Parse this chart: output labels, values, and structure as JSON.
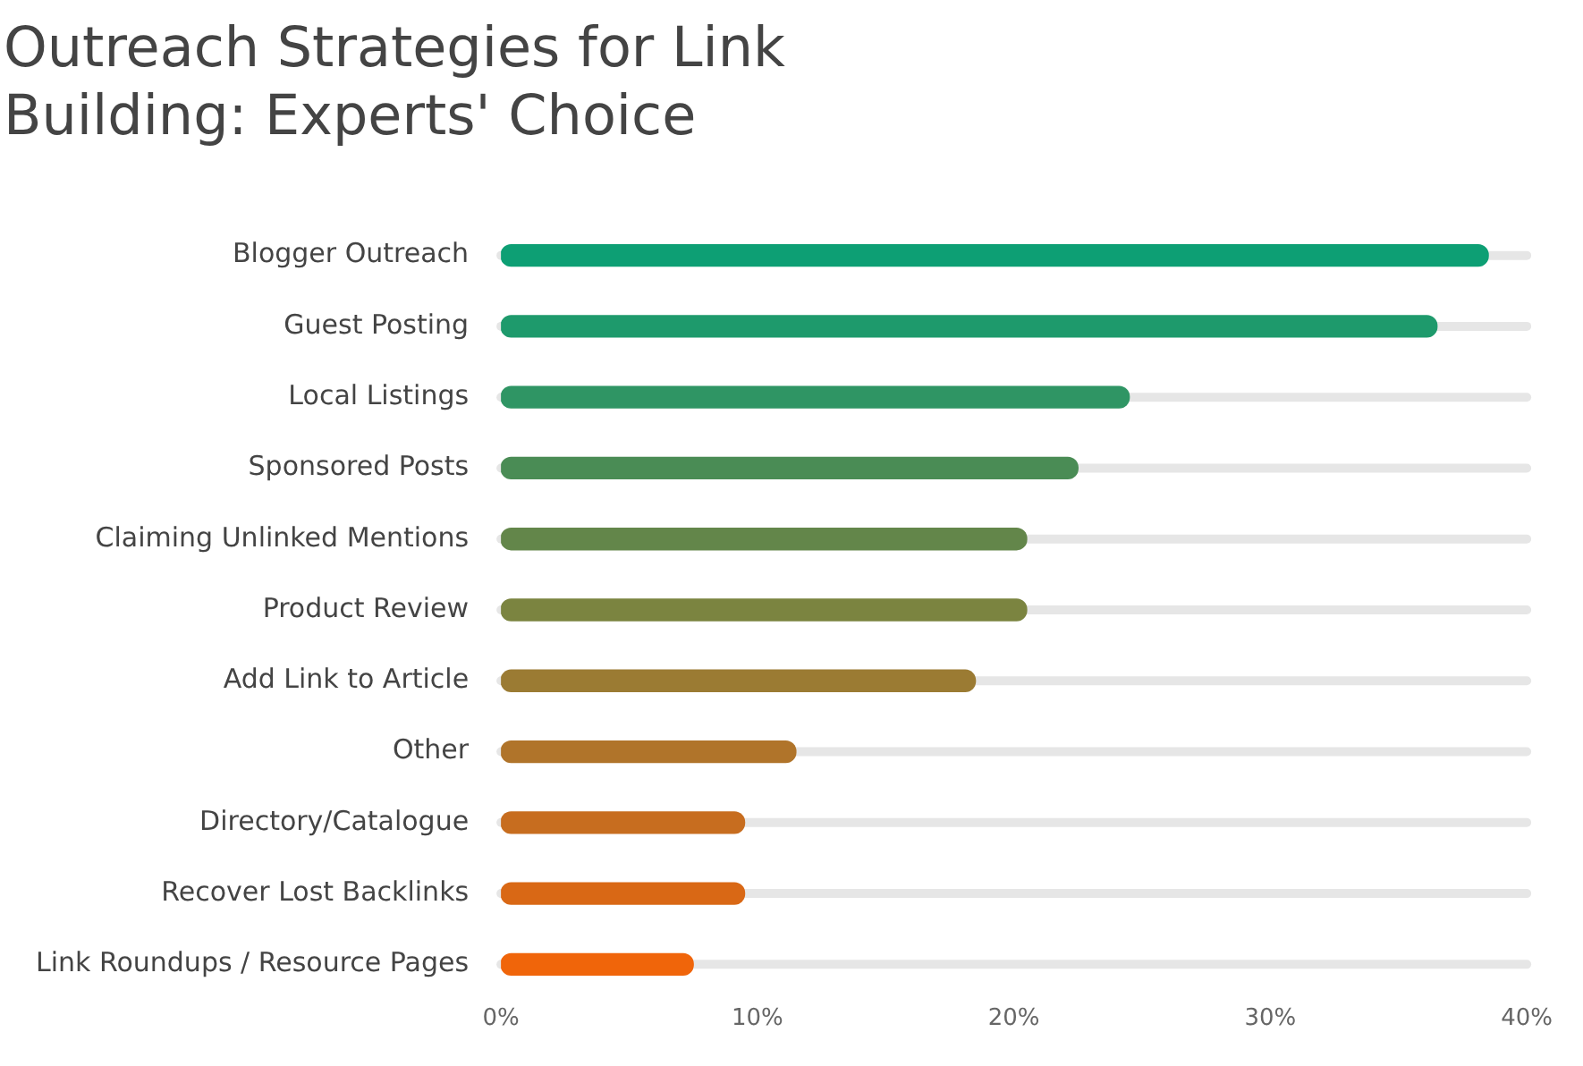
{
  "chart_data": {
    "type": "bar",
    "orientation": "horizontal",
    "title": "Outreach Strategies for Link Building: Experts' Choice",
    "categories": [
      "Blogger Outreach",
      "Guest Posting",
      "Local Listings",
      "Sponsored Posts",
      "Claiming Unlinked Mentions",
      "Product Review",
      "Add Link to Article",
      "Other",
      "Directory/Catalogue",
      "Recover Lost Backlinks",
      "Link Roundups / Resource Pages"
    ],
    "values": [
      38.5,
      36.5,
      24.5,
      22.5,
      20.5,
      20.5,
      18.5,
      11.5,
      9.5,
      9.5,
      7.5
    ],
    "colors": [
      "#0d9f74",
      "#1e9a6c",
      "#2f9564",
      "#4a8c55",
      "#63864a",
      "#7b8440",
      "#9b7b33",
      "#b0742a",
      "#c76d1f",
      "#d96815",
      "#f0650a"
    ],
    "xlim": [
      0,
      40
    ],
    "xticks": [
      {
        "value": 0,
        "label": "0%"
      },
      {
        "value": 10,
        "label": "10%"
      },
      {
        "value": 20,
        "label": "20%"
      },
      {
        "value": 30,
        "label": "30%"
      },
      {
        "value": 40,
        "label": "40%"
      }
    ],
    "grid": false,
    "legend": false
  }
}
